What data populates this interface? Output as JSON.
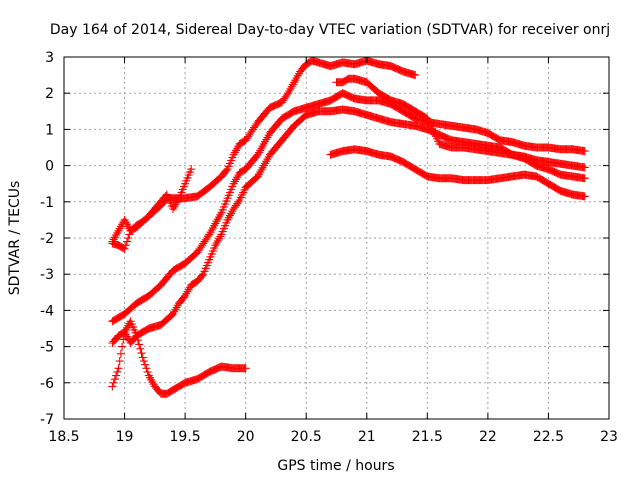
{
  "chart_data": {
    "type": "scatter",
    "title": "Day 164 of 2014, Sidereal Day-to-day VTEC variation (SDTVAR) for receiver onrj",
    "xlabel": "GPS time / hours",
    "ylabel": "SDTVAR / TECUs",
    "xlim": [
      18.5,
      23
    ],
    "ylim": [
      -7,
      3
    ],
    "xticks": [
      "18.5",
      "19",
      "19.5",
      "20",
      "20.5",
      "21",
      "21.5",
      "22",
      "22.5",
      "23"
    ],
    "yticks": [
      "-7",
      "-6",
      "-5",
      "-4",
      "-3",
      "-2",
      "-1",
      "0",
      "1",
      "2",
      "3"
    ],
    "grid": true,
    "marker": "+",
    "color": "#ff0000",
    "series": [
      {
        "name": "series-1",
        "x": [
          18.9,
          18.95,
          19.0,
          19.05,
          19.1,
          19.2,
          19.3,
          19.35,
          19.4,
          19.5,
          19.6,
          19.7,
          19.8,
          19.85,
          19.9,
          19.95,
          20.0,
          20.1,
          20.2,
          20.3,
          20.35,
          20.4,
          20.45,
          20.5,
          20.55,
          20.6,
          20.7,
          20.8,
          20.9,
          21.0,
          21.05,
          21.1,
          21.2,
          21.3,
          21.4
        ],
        "y": [
          -2.1,
          -1.8,
          -1.5,
          -1.8,
          -1.7,
          -1.4,
          -1.1,
          -0.9,
          -0.9,
          -0.9,
          -0.85,
          -0.6,
          -0.3,
          -0.1,
          0.3,
          0.6,
          0.7,
          1.2,
          1.6,
          1.75,
          2.0,
          2.3,
          2.6,
          2.8,
          2.9,
          2.85,
          2.75,
          2.85,
          2.8,
          2.9,
          2.85,
          2.8,
          2.75,
          2.6,
          2.5
        ]
      },
      {
        "name": "series-2",
        "x": [
          18.9,
          18.95,
          19.0,
          19.05,
          19.1,
          19.15,
          19.2,
          19.3,
          19.35,
          19.4,
          19.45,
          19.5,
          19.55
        ],
        "y": [
          -2.15,
          -2.2,
          -2.3,
          -1.8,
          -1.65,
          -1.55,
          -1.4,
          -1.0,
          -0.8,
          -1.2,
          -0.9,
          -0.5,
          -0.1
        ]
      },
      {
        "name": "series-3",
        "x": [
          18.9,
          19.0,
          19.1,
          19.2,
          19.3,
          19.4,
          19.5,
          19.6,
          19.7,
          19.8,
          19.85,
          19.9,
          19.95,
          20.0,
          20.1,
          20.2,
          20.3,
          20.4,
          20.5,
          20.6,
          20.7,
          20.75,
          20.8,
          20.9,
          21.0,
          21.1,
          21.2,
          21.3,
          21.4,
          21.5,
          21.6,
          21.7,
          21.8,
          21.9,
          22.0,
          22.1,
          22.2,
          22.3,
          22.4,
          22.5,
          22.6,
          22.7,
          22.8
        ],
        "y": [
          -4.3,
          -4.1,
          -3.8,
          -3.6,
          -3.3,
          -2.9,
          -2.7,
          -2.4,
          -1.9,
          -1.3,
          -0.9,
          -0.5,
          -0.2,
          -0.1,
          0.3,
          0.9,
          1.3,
          1.5,
          1.6,
          1.7,
          1.8,
          1.9,
          2.0,
          1.85,
          1.8,
          1.8,
          1.7,
          1.5,
          1.3,
          1.2,
          1.15,
          1.1,
          1.05,
          1.0,
          0.9,
          0.7,
          0.65,
          0.55,
          0.5,
          0.5,
          0.45,
          0.45,
          0.4
        ]
      },
      {
        "name": "series-4",
        "x": [
          18.9,
          18.95,
          19.0,
          19.05,
          19.1,
          19.2,
          19.3,
          19.4,
          19.45,
          19.5,
          19.55,
          19.6,
          19.65,
          19.7,
          19.75,
          19.8,
          19.85,
          19.9,
          19.95,
          20.0,
          20.1,
          20.2,
          20.3,
          20.4,
          20.5,
          20.6,
          20.7,
          20.8,
          20.9,
          21.0,
          21.1,
          21.2,
          21.3,
          21.4,
          21.5,
          21.6,
          21.7,
          21.8,
          21.9,
          22.0,
          22.1,
          22.2,
          22.3,
          22.4,
          22.5,
          22.6,
          22.7,
          22.8
        ],
        "y": [
          -4.9,
          -4.7,
          -4.6,
          -4.9,
          -4.7,
          -4.5,
          -4.4,
          -4.1,
          -3.8,
          -3.6,
          -3.3,
          -3.2,
          -3.0,
          -2.6,
          -2.2,
          -1.9,
          -1.5,
          -1.2,
          -0.95,
          -0.6,
          -0.3,
          0.3,
          0.7,
          1.1,
          1.4,
          1.5,
          1.5,
          1.55,
          1.5,
          1.4,
          1.3,
          1.2,
          1.15,
          1.1,
          1.0,
          0.85,
          0.7,
          0.65,
          0.6,
          0.55,
          0.5,
          0.3,
          0.25,
          0.15,
          0.1,
          0.05,
          0.0,
          -0.05
        ]
      },
      {
        "name": "series-5",
        "x": [
          18.9,
          18.95,
          19.0,
          19.05,
          19.1,
          19.15,
          19.2,
          19.25,
          19.3,
          19.35,
          19.4,
          19.5,
          19.6,
          19.7,
          19.8,
          19.9,
          20.0
        ],
        "y": [
          -6.1,
          -5.6,
          -4.6,
          -4.3,
          -4.7,
          -5.3,
          -5.8,
          -6.1,
          -6.3,
          -6.3,
          -6.2,
          -6.0,
          -5.9,
          -5.7,
          -5.55,
          -5.6,
          -5.6
        ]
      },
      {
        "name": "series-6",
        "x": [
          20.7,
          20.8,
          20.9,
          21.0,
          21.1,
          21.2,
          21.3,
          21.4,
          21.5,
          21.6,
          21.7,
          21.8,
          21.9,
          22.0,
          22.1,
          22.2,
          22.3,
          22.4,
          22.5,
          22.6,
          22.7,
          22.8
        ],
        "y": [
          0.3,
          0.4,
          0.45,
          0.4,
          0.3,
          0.25,
          0.1,
          -0.1,
          -0.3,
          -0.35,
          -0.35,
          -0.4,
          -0.4,
          -0.4,
          -0.35,
          -0.3,
          -0.25,
          -0.3,
          -0.5,
          -0.7,
          -0.8,
          -0.85
        ]
      },
      {
        "name": "series-7",
        "x": [
          20.75,
          20.8,
          20.85,
          20.9,
          21.0,
          21.1,
          21.2,
          21.3,
          21.4,
          21.5,
          21.6,
          21.7,
          21.8,
          21.9,
          22.0,
          22.1,
          22.2,
          22.3,
          22.4,
          22.5,
          22.6,
          22.7,
          22.8
        ],
        "y": [
          2.3,
          2.3,
          2.4,
          2.4,
          2.3,
          2.0,
          1.8,
          1.7,
          1.5,
          1.3,
          0.6,
          0.5,
          0.5,
          0.45,
          0.4,
          0.35,
          0.3,
          0.2,
          0.0,
          -0.1,
          -0.25,
          -0.3,
          -0.35
        ]
      }
    ]
  }
}
